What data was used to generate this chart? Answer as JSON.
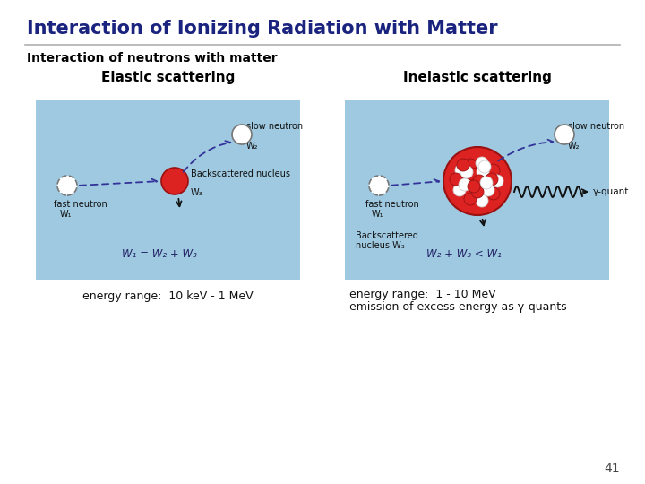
{
  "title": "Interaction of Ionizing Radiation with Matter",
  "subtitle": "Interaction of neutrons with matter",
  "title_color": "#1a237e",
  "subtitle_color": "#000000",
  "bg_color": "#ffffff",
  "panel_bg": "#9ec9e0",
  "elastic_title": "Elastic scattering",
  "inelastic_title": "Inelastic scattering",
  "elastic_energy": "energy range:  10 keV - 1 MeV",
  "inelastic_energy_line1": "energy range:  1 - 10 MeV",
  "inelastic_energy_line2": "emission of excess energy as γ-quants",
  "elastic_eq": "W₁ = W₂ + W₃",
  "inelastic_eq": "W₂ + W₃ < W₁",
  "footer_number": "41",
  "separator_color": "#b0b0b0",
  "dark_navy": "#1a237e",
  "arrow_color": "#333399",
  "label_color": "#111111",
  "nuc_red": "#dd2222",
  "nuc_dark": "#991111"
}
